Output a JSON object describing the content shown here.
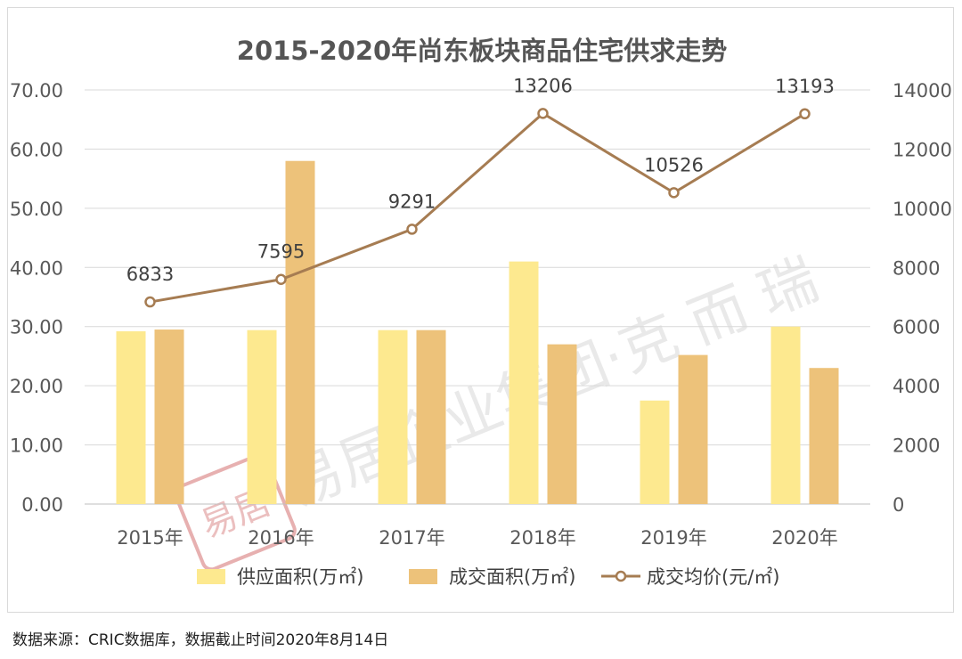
{
  "chart_data": {
    "type": "bar",
    "title": "2015-2020年尚东板块商品住宅供求走势",
    "categories": [
      "2015年",
      "2016年",
      "2017年",
      "2018年",
      "2019年",
      "2020年"
    ],
    "series": [
      {
        "name": "供应面积(万㎡)",
        "type": "bar",
        "axis": "left",
        "color": "#FDE98F",
        "values": [
          29.2,
          29.4,
          29.4,
          41.0,
          17.5,
          30.0
        ]
      },
      {
        "name": "成交面积(万㎡)",
        "type": "bar",
        "axis": "left",
        "color": "#EDC27A",
        "values": [
          29.5,
          58.0,
          29.4,
          27.0,
          25.2,
          23.0
        ]
      },
      {
        "name": "成交均价(元/㎡)",
        "type": "line",
        "axis": "right",
        "color": "#A67C52",
        "values": [
          6833,
          7595,
          9291,
          13206,
          10526,
          13193
        ],
        "labels": [
          "6833",
          "7595",
          "9291",
          "13206",
          "10526",
          "13193"
        ]
      }
    ],
    "y_left": {
      "ylim": [
        0,
        70
      ],
      "ticks": [
        "0.00",
        "10.00",
        "20.00",
        "30.00",
        "40.00",
        "50.00",
        "60.00",
        "70.00"
      ]
    },
    "y_right": {
      "ylim": [
        0,
        14000
      ],
      "ticks": [
        "0",
        "2000",
        "4000",
        "6000",
        "8000",
        "10000",
        "12000",
        "14000"
      ]
    },
    "grid": true,
    "legend_position": "bottom"
  },
  "watermark": {
    "text": "易居企业集团·克 而 瑞",
    "seal": "易居"
  },
  "footer": {
    "source": "数据来源：CRIC数据库，数据截止时间2020年8月14日"
  }
}
